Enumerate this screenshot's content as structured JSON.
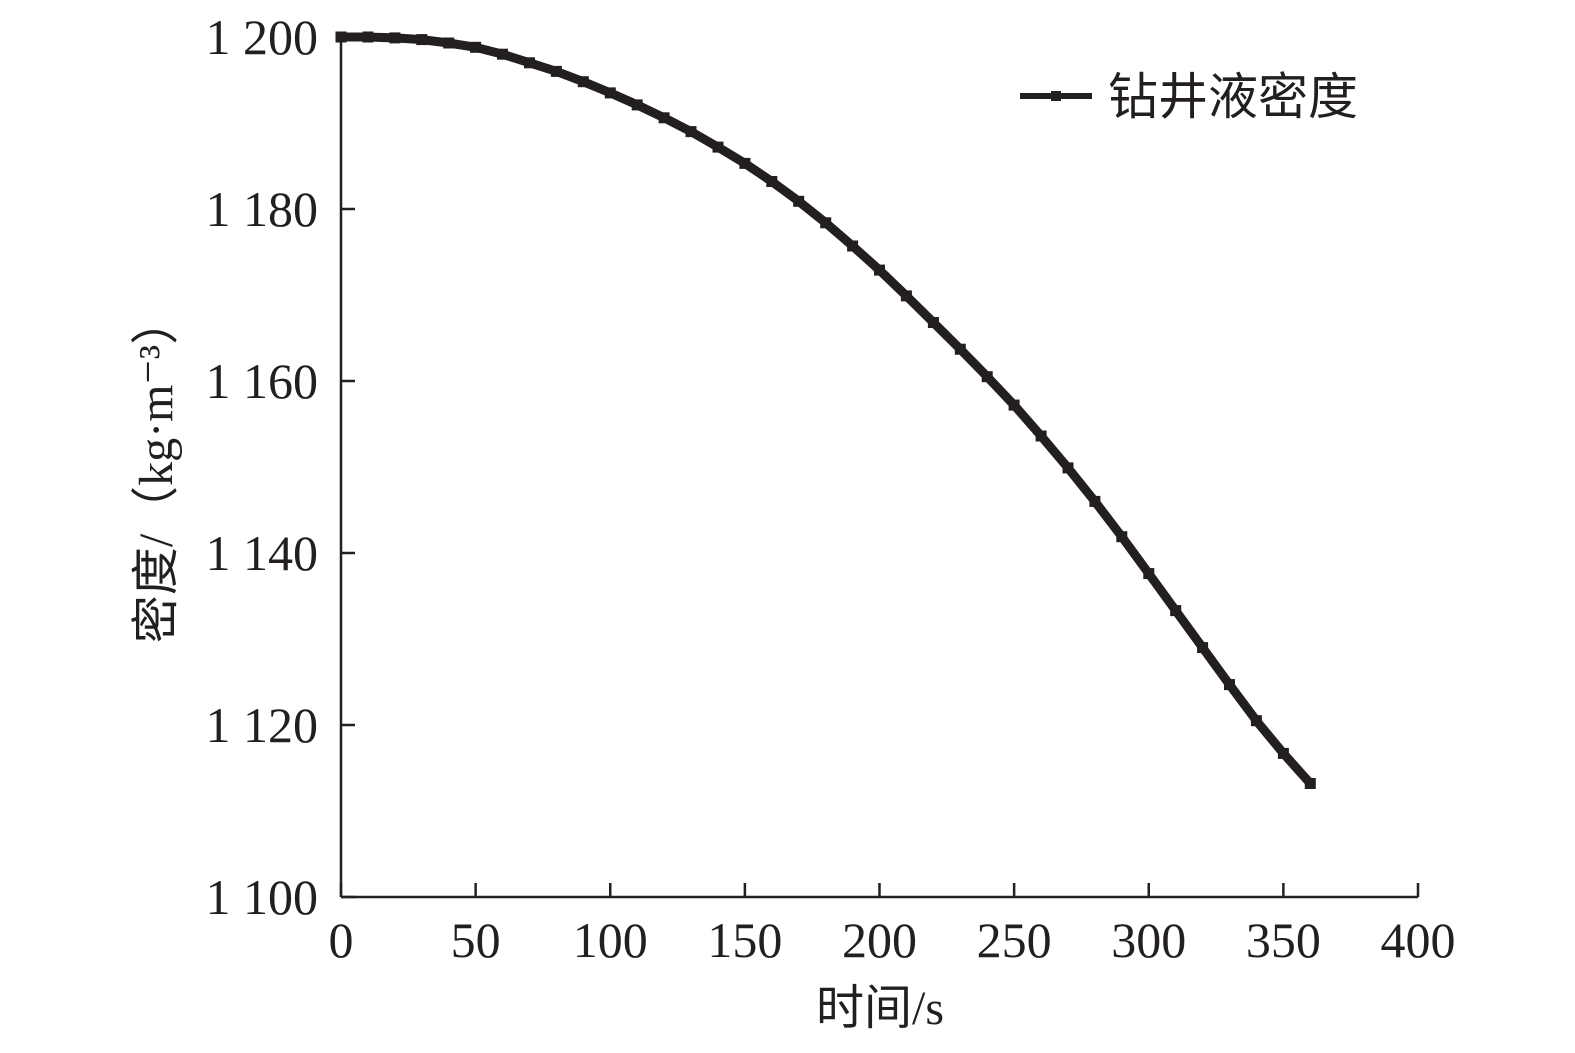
{
  "chart_data": {
    "type": "line",
    "xlabel": "时间/s",
    "ylabel": "密度/（kg·m⁻³）",
    "xlim": [
      0,
      400
    ],
    "ylim": [
      1100,
      1200
    ],
    "grid": false,
    "legend": {
      "position": "top-right"
    },
    "xticks": [
      {
        "value": 0,
        "label": "0"
      },
      {
        "value": 50,
        "label": "50"
      },
      {
        "value": 100,
        "label": "100"
      },
      {
        "value": 150,
        "label": "150"
      },
      {
        "value": 200,
        "label": "200"
      },
      {
        "value": 250,
        "label": "250"
      },
      {
        "value": 300,
        "label": "300"
      },
      {
        "value": 350,
        "label": "350"
      },
      {
        "value": 400,
        "label": "400"
      }
    ],
    "yticks": [
      {
        "value": 1100,
        "label": "1 100"
      },
      {
        "value": 1120,
        "label": "1 120"
      },
      {
        "value": 1140,
        "label": "1 140"
      },
      {
        "value": 1160,
        "label": "1 160"
      },
      {
        "value": 1180,
        "label": "1 180"
      },
      {
        "value": 1200,
        "label": "1 200"
      }
    ],
    "series": [
      {
        "name": "钻井液密度",
        "color": "#231f20",
        "marker": "square",
        "x": [
          0,
          10,
          20,
          30,
          40,
          50,
          60,
          70,
          80,
          90,
          100,
          110,
          120,
          130,
          140,
          150,
          160,
          170,
          180,
          190,
          200,
          210,
          220,
          230,
          240,
          250,
          260,
          270,
          280,
          290,
          300,
          310,
          320,
          330,
          340,
          350,
          360
        ],
        "y": [
          1200.0,
          1200.0,
          1199.9,
          1199.7,
          1199.3,
          1198.8,
          1198.0,
          1197.0,
          1196.0,
          1194.8,
          1193.5,
          1192.1,
          1190.6,
          1189.0,
          1187.2,
          1185.3,
          1183.2,
          1180.9,
          1178.4,
          1175.7,
          1172.9,
          1169.9,
          1166.8,
          1163.7,
          1160.5,
          1157.2,
          1153.6,
          1149.9,
          1146.0,
          1141.9,
          1137.6,
          1133.3,
          1129.0,
          1124.7,
          1120.5,
          1116.7,
          1113.2
        ]
      }
    ]
  }
}
